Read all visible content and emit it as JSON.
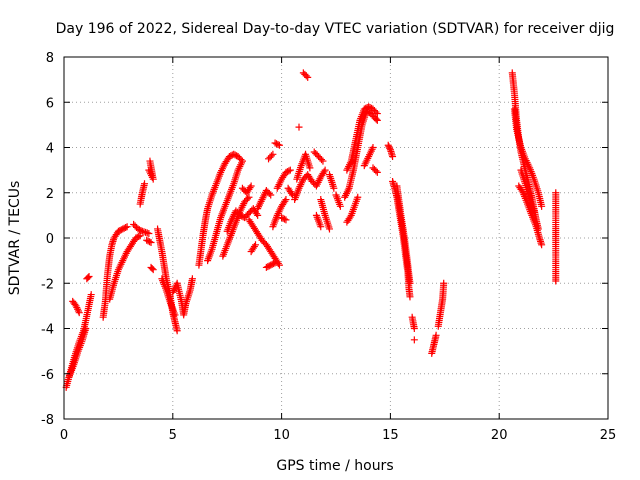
{
  "chart_data": {
    "type": "scatter",
    "title": "Day 196 of 2022, Sidereal Day-to-day VTEC variation (SDTVAR) for receiver djig",
    "xlabel": "GPS time / hours",
    "ylabel": "SDTVAR / TECUs",
    "xlim": [
      0,
      25
    ],
    "ylim": [
      -8,
      8
    ],
    "xticks": [
      0,
      5,
      10,
      15,
      20,
      25
    ],
    "yticks": [
      -8,
      -6,
      -4,
      -2,
      0,
      2,
      4,
      6,
      8
    ],
    "xtick_labels": [
      "0",
      "5",
      "10",
      "15",
      "20",
      "25"
    ],
    "ytick_labels": [
      "-8",
      "-6",
      "-4",
      "-2",
      "0",
      "2",
      "4",
      "6",
      "8"
    ],
    "grid": true,
    "marker": "+",
    "color": "#ff0000",
    "tracks": [
      [
        [
          0.1,
          -6.6
        ],
        [
          0.3,
          -5.9
        ],
        [
          0.5,
          -5.2
        ],
        [
          0.7,
          -4.6
        ],
        [
          0.9,
          -4.1
        ],
        [
          1.1,
          -3.2
        ],
        [
          1.25,
          -2.5
        ]
      ],
      [
        [
          0.25,
          -6.1
        ],
        [
          0.45,
          -5.6
        ],
        [
          0.65,
          -5.0
        ],
        [
          0.85,
          -4.5
        ],
        [
          1.0,
          -4.0
        ]
      ],
      [
        [
          0.4,
          -2.8
        ],
        [
          0.55,
          -3.0
        ],
        [
          0.7,
          -3.3
        ]
      ],
      [
        [
          1.05,
          -1.8
        ],
        [
          1.15,
          -1.7
        ]
      ],
      [
        [
          1.8,
          -3.5
        ],
        [
          1.9,
          -2.8
        ],
        [
          2.0,
          -1.6
        ],
        [
          2.1,
          -0.8
        ],
        [
          2.2,
          -0.3
        ],
        [
          2.3,
          0.0
        ],
        [
          2.5,
          0.3
        ],
        [
          2.7,
          0.4
        ],
        [
          2.9,
          0.5
        ]
      ],
      [
        [
          2.1,
          -2.7
        ],
        [
          2.3,
          -2.0
        ],
        [
          2.5,
          -1.4
        ],
        [
          2.7,
          -1.0
        ],
        [
          2.9,
          -0.6
        ],
        [
          3.1,
          -0.3
        ],
        [
          3.3,
          0.0
        ],
        [
          3.5,
          0.1
        ]
      ],
      [
        [
          3.2,
          0.6
        ],
        [
          3.4,
          0.4
        ],
        [
          3.6,
          0.3
        ],
        [
          3.9,
          0.2
        ]
      ],
      [
        [
          3.5,
          1.5
        ],
        [
          3.6,
          2.0
        ],
        [
          3.7,
          2.4
        ]
      ],
      [
        [
          3.9,
          3.0
        ],
        [
          4.1,
          2.6
        ],
        [
          3.95,
          3.4
        ]
      ],
      [
        [
          3.8,
          -0.1
        ],
        [
          4.0,
          -0.2
        ]
      ],
      [
        [
          4.0,
          -1.3
        ],
        [
          4.1,
          -1.4
        ]
      ],
      [
        [
          4.3,
          0.4
        ],
        [
          4.4,
          -0.1
        ],
        [
          4.5,
          -0.6
        ],
        [
          4.6,
          -1.2
        ],
        [
          4.7,
          -1.8
        ],
        [
          4.85,
          -2.4
        ],
        [
          5.0,
          -3.3
        ],
        [
          5.1,
          -3.7
        ],
        [
          5.2,
          -4.1
        ]
      ],
      [
        [
          4.5,
          -1.8
        ],
        [
          4.7,
          -2.3
        ],
        [
          4.9,
          -2.9
        ],
        [
          5.1,
          -3.4
        ]
      ],
      [
        [
          5.0,
          -2.4
        ],
        [
          5.2,
          -2.0
        ],
        [
          5.4,
          -2.8
        ],
        [
          5.5,
          -3.4
        ],
        [
          5.6,
          -2.9
        ],
        [
          5.8,
          -2.3
        ],
        [
          5.9,
          -1.8
        ]
      ],
      [
        [
          6.2,
          -1.2
        ],
        [
          6.3,
          -0.5
        ],
        [
          6.4,
          0.2
        ],
        [
          6.5,
          0.8
        ],
        [
          6.6,
          1.3
        ],
        [
          6.8,
          1.9
        ],
        [
          7.0,
          2.4
        ],
        [
          7.2,
          2.9
        ],
        [
          7.4,
          3.3
        ],
        [
          7.6,
          3.6
        ],
        [
          7.8,
          3.7
        ],
        [
          8.0,
          3.6
        ],
        [
          8.2,
          3.4
        ]
      ],
      [
        [
          6.6,
          -1.0
        ],
        [
          6.8,
          -0.5
        ],
        [
          7.0,
          0.2
        ],
        [
          7.2,
          0.9
        ],
        [
          7.4,
          1.4
        ],
        [
          7.6,
          1.9
        ],
        [
          7.8,
          2.4
        ],
        [
          8.0,
          3.0
        ],
        [
          8.2,
          3.4
        ]
      ],
      [
        [
          7.3,
          -0.8
        ],
        [
          7.5,
          -0.3
        ],
        [
          7.7,
          0.2
        ],
        [
          7.9,
          0.7
        ],
        [
          8.1,
          1.2
        ],
        [
          8.3,
          1.6
        ],
        [
          8.5,
          1.8
        ]
      ],
      [
        [
          7.5,
          0.3
        ],
        [
          7.7,
          0.8
        ],
        [
          7.9,
          1.2
        ],
        [
          8.1,
          1.0
        ],
        [
          8.3,
          0.9
        ],
        [
          8.5,
          1.1
        ],
        [
          8.7,
          1.3
        ],
        [
          8.9,
          1.0
        ]
      ],
      [
        [
          8.2,
          2.2
        ],
        [
          8.4,
          2.0
        ],
        [
          8.6,
          2.3
        ]
      ],
      [
        [
          8.5,
          0.8
        ],
        [
          8.7,
          0.5
        ],
        [
          8.9,
          0.2
        ],
        [
          9.1,
          -0.1
        ],
        [
          9.3,
          -0.3
        ],
        [
          9.5,
          -0.6
        ],
        [
          9.7,
          -0.9
        ],
        [
          9.9,
          -1.2
        ]
      ],
      [
        [
          8.6,
          -0.6
        ],
        [
          8.8,
          -0.3
        ]
      ],
      [
        [
          8.9,
          1.3
        ],
        [
          9.1,
          1.7
        ],
        [
          9.3,
          2.1
        ],
        [
          9.5,
          1.9
        ]
      ],
      [
        [
          9.3,
          -1.3
        ],
        [
          9.5,
          -1.2
        ],
        [
          9.7,
          -1.1
        ]
      ],
      [
        [
          9.6,
          0.5
        ],
        [
          9.8,
          1.0
        ],
        [
          10.0,
          1.4
        ],
        [
          10.2,
          1.7
        ]
      ],
      [
        [
          9.4,
          3.5
        ],
        [
          9.6,
          3.7
        ]
      ],
      [
        [
          9.7,
          4.2
        ],
        [
          9.9,
          4.1
        ]
      ],
      [
        [
          9.8,
          2.2
        ],
        [
          10.0,
          2.6
        ],
        [
          10.2,
          2.9
        ],
        [
          10.4,
          3.0
        ]
      ],
      [
        [
          10.0,
          0.9
        ],
        [
          10.2,
          0.8
        ]
      ],
      [
        [
          10.3,
          2.2
        ],
        [
          10.5,
          1.9
        ]
      ],
      [
        [
          10.6,
          1.7
        ],
        [
          10.8,
          2.2
        ],
        [
          11.0,
          2.6
        ],
        [
          11.2,
          2.8
        ],
        [
          11.4,
          2.5
        ],
        [
          11.6,
          2.3
        ],
        [
          11.8,
          2.7
        ],
        [
          12.0,
          3.0
        ]
      ],
      [
        [
          10.7,
          2.6
        ],
        [
          10.9,
          3.2
        ],
        [
          11.1,
          3.7
        ],
        [
          11.3,
          3.1
        ]
      ],
      [
        [
          10.8,
          4.9
        ]
      ],
      [
        [
          11.0,
          7.3
        ],
        [
          11.2,
          7.1
        ]
      ],
      [
        [
          11.5,
          3.8
        ],
        [
          11.7,
          3.6
        ],
        [
          11.9,
          3.4
        ]
      ],
      [
        [
          11.8,
          1.7
        ],
        [
          12.0,
          1.0
        ],
        [
          12.2,
          0.4
        ]
      ],
      [
        [
          11.6,
          1.0
        ],
        [
          11.8,
          0.5
        ]
      ],
      [
        [
          12.2,
          2.8
        ],
        [
          12.4,
          2.2
        ]
      ],
      [
        [
          12.5,
          1.9
        ],
        [
          12.7,
          1.4
        ]
      ],
      [
        [
          13.0,
          3.0
        ],
        [
          13.2,
          3.4
        ],
        [
          13.4,
          4.3
        ],
        [
          13.6,
          5.2
        ],
        [
          13.8,
          5.7
        ],
        [
          14.0,
          5.8
        ],
        [
          14.2,
          5.7
        ],
        [
          14.4,
          5.5
        ]
      ],
      [
        [
          12.9,
          1.8
        ],
        [
          13.1,
          2.2
        ],
        [
          13.3,
          3.0
        ],
        [
          13.5,
          4.0
        ],
        [
          13.7,
          5.0
        ],
        [
          13.9,
          5.6
        ],
        [
          14.1,
          5.5
        ],
        [
          14.3,
          5.3
        ],
        [
          14.4,
          5.2
        ]
      ],
      [
        [
          13.0,
          0.7
        ],
        [
          13.2,
          1.0
        ],
        [
          13.5,
          1.8
        ]
      ],
      [
        [
          13.8,
          3.2
        ],
        [
          14.0,
          3.6
        ],
        [
          14.2,
          4.0
        ]
      ],
      [
        [
          14.4,
          2.9
        ],
        [
          14.2,
          3.1
        ]
      ],
      [
        [
          14.9,
          4.1
        ],
        [
          15.0,
          3.9
        ],
        [
          15.1,
          3.6
        ]
      ],
      [
        [
          15.1,
          2.5
        ],
        [
          15.2,
          2.2
        ],
        [
          15.3,
          1.8
        ],
        [
          15.4,
          1.2
        ],
        [
          15.5,
          0.6
        ],
        [
          15.6,
          0.0
        ],
        [
          15.7,
          -0.8
        ],
        [
          15.8,
          -1.5
        ],
        [
          15.85,
          -2.2
        ],
        [
          15.9,
          -2.6
        ]
      ],
      [
        [
          15.3,
          2.3
        ],
        [
          15.4,
          1.6
        ],
        [
          15.5,
          0.9
        ],
        [
          15.6,
          0.3
        ],
        [
          15.7,
          -0.4
        ],
        [
          15.8,
          -1.2
        ],
        [
          15.9,
          -2.0
        ]
      ],
      [
        [
          16.0,
          -3.5
        ],
        [
          16.1,
          -4.0
        ]
      ],
      [
        [
          16.1,
          -4.5
        ]
      ],
      [
        [
          16.9,
          -5.1
        ],
        [
          17.0,
          -4.7
        ],
        [
          17.1,
          -4.3
        ]
      ],
      [
        [
          17.2,
          -3.9
        ],
        [
          17.3,
          -3.3
        ],
        [
          17.4,
          -2.7
        ],
        [
          17.45,
          -2.0
        ]
      ],
      [
        [
          20.6,
          7.3
        ],
        [
          20.7,
          6.4
        ],
        [
          20.8,
          5.2
        ],
        [
          20.9,
          4.4
        ],
        [
          21.0,
          3.8
        ],
        [
          21.1,
          3.4
        ],
        [
          21.2,
          3.0
        ],
        [
          21.3,
          2.6
        ],
        [
          21.4,
          2.2
        ],
        [
          21.5,
          1.8
        ],
        [
          21.6,
          1.3
        ],
        [
          21.7,
          0.8
        ],
        [
          21.8,
          0.4
        ]
      ],
      [
        [
          20.7,
          5.7
        ],
        [
          20.8,
          4.8
        ],
        [
          21.0,
          4.0
        ],
        [
          21.2,
          3.5
        ],
        [
          21.4,
          3.1
        ],
        [
          21.6,
          2.6
        ],
        [
          21.8,
          2.0
        ],
        [
          21.95,
          1.4
        ]
      ],
      [
        [
          20.9,
          2.3
        ],
        [
          21.1,
          2.0
        ],
        [
          21.3,
          1.5
        ],
        [
          21.5,
          1.0
        ],
        [
          21.7,
          0.5
        ],
        [
          21.85,
          0.0
        ],
        [
          21.95,
          -0.3
        ]
      ],
      [
        [
          21.0,
          3.0
        ],
        [
          21.2,
          2.4
        ],
        [
          21.4,
          1.8
        ],
        [
          21.6,
          1.2
        ]
      ],
      [
        [
          22.6,
          2.0
        ],
        [
          22.6,
          0.5
        ],
        [
          22.6,
          -0.1
        ],
        [
          22.6,
          -1.4
        ],
        [
          22.6,
          -1.9
        ]
      ]
    ]
  }
}
